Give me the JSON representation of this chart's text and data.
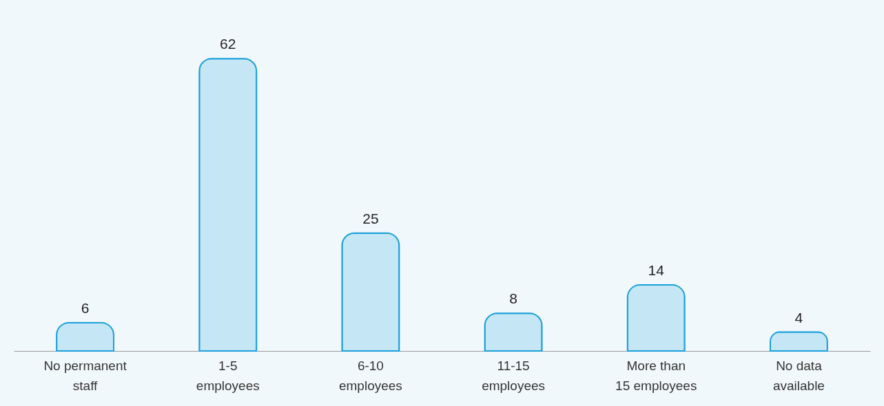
{
  "chart_data": {
    "type": "bar",
    "categories": [
      "No permanent\nstaff",
      "1-5\nemployees",
      "6-10\nemployees",
      "11-15\nemployees",
      "More than\n15 employees",
      "No data\navailable"
    ],
    "values": [
      6,
      62,
      25,
      8,
      14,
      4
    ],
    "color": "#c5e7f5",
    "data_labels": true
  }
}
